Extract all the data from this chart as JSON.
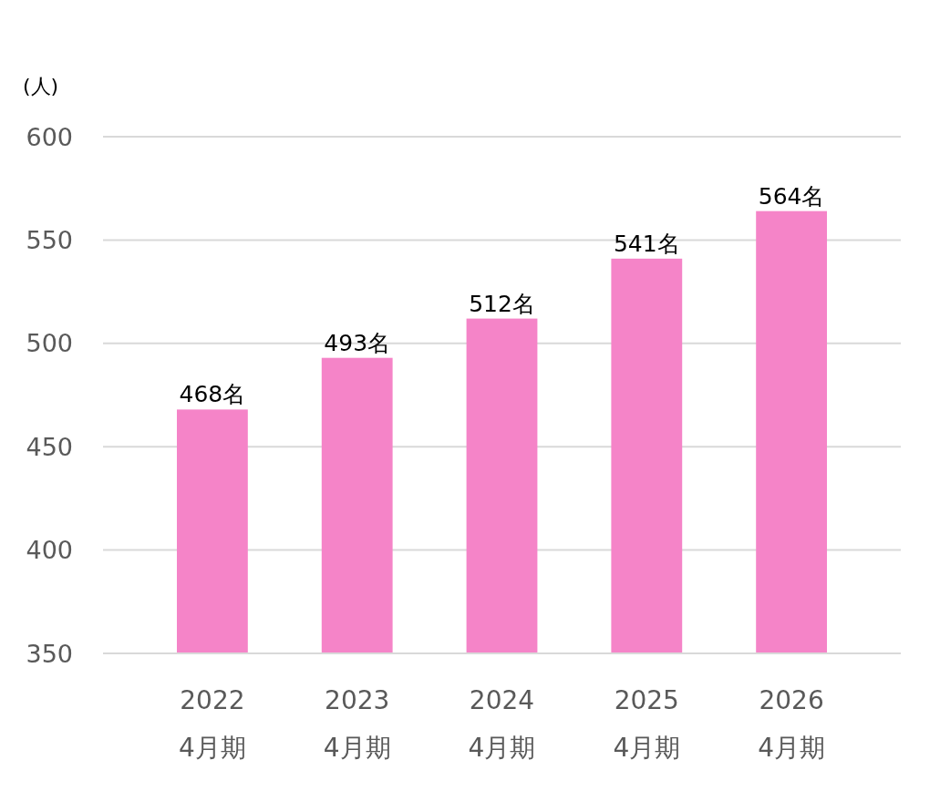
{
  "chart_data": {
    "type": "bar",
    "ylabel": "(人)",
    "categories": [
      "2022\n4月期",
      "2023\n4月期",
      "2024\n4月期",
      "2025\n4月期",
      "2026\n4月期"
    ],
    "values": [
      468,
      493,
      512,
      541,
      564
    ],
    "value_labels": [
      "468名",
      "493名",
      "512名",
      "541名",
      "564名"
    ],
    "color": "#f584c8",
    "ylim": [
      350,
      600
    ],
    "yticks": [
      350,
      400,
      450,
      500,
      550,
      600
    ],
    "grid": "y"
  }
}
